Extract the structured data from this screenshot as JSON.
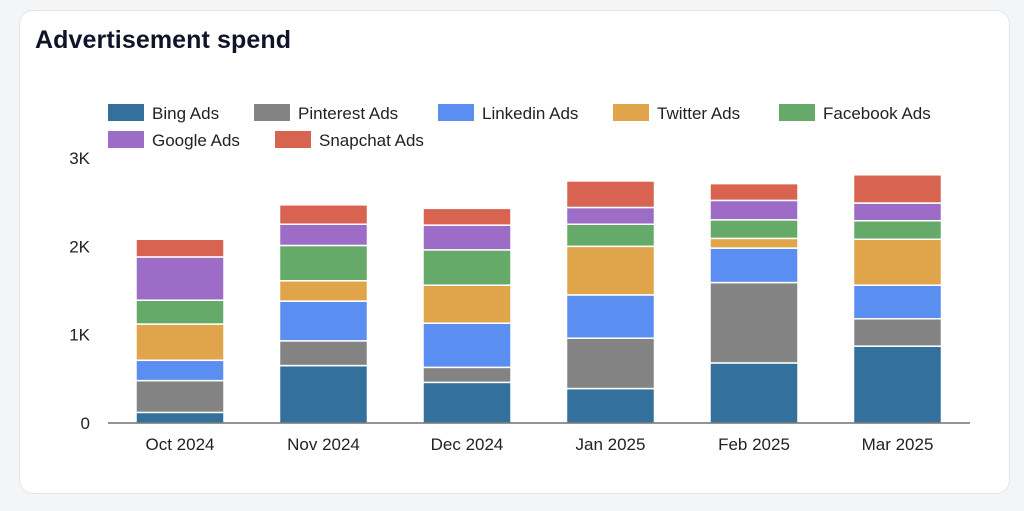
{
  "chart_data": {
    "type": "bar",
    "stacked": true,
    "title": "Advertisement spend",
    "xlabel": "",
    "ylabel": "",
    "categories": [
      "Oct 2024",
      "Nov 2024",
      "Dec 2024",
      "Jan 2025",
      "Feb 2025",
      "Mar 2025"
    ],
    "ylim": [
      0,
      3000
    ],
    "yticks": [
      0,
      1000,
      2000,
      3000
    ],
    "ytick_labels": [
      "0",
      "1K",
      "2K",
      "3K"
    ],
    "grid": false,
    "legend_position": "top-left",
    "series": [
      {
        "name": "Bing Ads",
        "color": "#33719c",
        "values": [
          120,
          650,
          460,
          390,
          680,
          870
        ]
      },
      {
        "name": "Pinterest Ads",
        "color": "#838383",
        "values": [
          360,
          280,
          170,
          570,
          910,
          310
        ]
      },
      {
        "name": "Linkedin Ads",
        "color": "#5a8ef0",
        "values": [
          230,
          450,
          500,
          490,
          390,
          380
        ]
      },
      {
        "name": "Twitter Ads",
        "color": "#e0a54a",
        "values": [
          410,
          230,
          430,
          550,
          110,
          520
        ]
      },
      {
        "name": "Facebook Ads",
        "color": "#66aa6a",
        "values": [
          270,
          400,
          400,
          250,
          210,
          210
        ]
      },
      {
        "name": "Google Ads",
        "color": "#9c6cc6",
        "values": [
          490,
          240,
          280,
          190,
          220,
          200
        ]
      },
      {
        "name": "Snapchat Ads",
        "color": "#d76350",
        "values": [
          200,
          220,
          190,
          300,
          190,
          320
        ]
      }
    ]
  }
}
